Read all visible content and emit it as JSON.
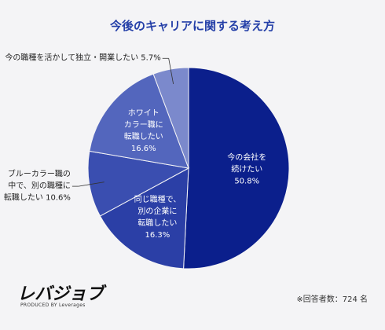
{
  "chart_data": {
    "type": "pie",
    "title": "今後のキャリアに関する考え方",
    "categories": [
      "今の会社を\n続けたい",
      "同じ職種で、\n別の企業に\n転職したい",
      "ブルーカラー職の\n中で、別の職種に\n転職したい",
      "ホワイト\nカラー職に\n転職したい",
      "今の職種を活かして独立・開業したい"
    ],
    "values": [
      50.8,
      16.3,
      10.6,
      16.6,
      5.7
    ],
    "value_labels": [
      "50.8%",
      "16.3%",
      "10.6%",
      "16.6%",
      "5.7%"
    ],
    "colors": [
      "#0b1f8c",
      "#2b3fa6",
      "#3a4eb0",
      "#5366bd",
      "#7b89cc"
    ]
  },
  "footer": {
    "brand": "レバジョブ",
    "tagline": "PRODUCED BY Leverages",
    "note": "※回答者数：724 名"
  }
}
